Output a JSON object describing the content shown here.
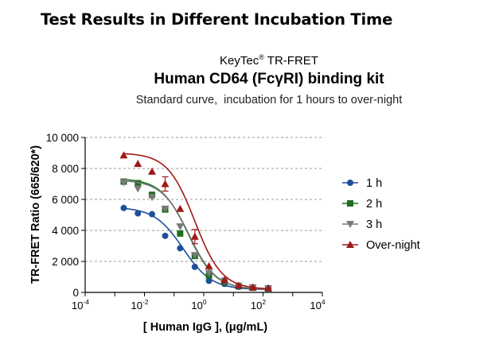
{
  "heading": "Test Results in Different Incubation Time",
  "brand": {
    "name": "KeyTec",
    "mark": "®",
    "product": "TR-FRET"
  },
  "chart_data": {
    "type": "line",
    "title": "Human CD64 (FcγRI) binding kit",
    "subtitle": "Standard curve,  incubation for 1 hours to over-night",
    "xlabel": "[ Human IgG ],  (μg/mL)",
    "ylabel": "TR-FRET Ratio (665/620*)",
    "xscale": "log10",
    "xlim": [
      0.0001,
      10000
    ],
    "ylim": [
      0,
      10000
    ],
    "x_tick_base": "10",
    "x_tick_exponents": [
      "-4",
      "-2",
      "0",
      "2",
      "4"
    ],
    "y_ticks": [
      0,
      2000,
      4000,
      6000,
      8000,
      10000
    ],
    "y_tick_labels": [
      "0",
      "2 000",
      "4 000",
      "6 000",
      "8 000",
      "10 000"
    ],
    "gridlines": "horizontal dashed",
    "legend_position": "right",
    "x": [
      0.002,
      0.006,
      0.018,
      0.05,
      0.16,
      0.5,
      1.5,
      5,
      15,
      45,
      150
    ],
    "series": [
      {
        "name": "1 h",
        "color": "#1f4e9a",
        "marker": "circle",
        "values": [
          5450,
          5100,
          5050,
          3650,
          2850,
          1650,
          750,
          550,
          350,
          300,
          250
        ],
        "fit": {
          "bottom": 180,
          "top": 5500,
          "ec50": 0.2,
          "hill": 0.9
        }
      },
      {
        "name": "2 h",
        "color": "#1f6e1f",
        "marker": "square",
        "values": [
          7150,
          7050,
          6300,
          5350,
          3800,
          2350,
          1100,
          700,
          400,
          300,
          250
        ],
        "fit": {
          "bottom": 200,
          "top": 7350,
          "ec50": 0.3,
          "hill": 0.95
        }
      },
      {
        "name": "3 h",
        "color": "#7a7a7a",
        "marker": "triangle-down",
        "values": [
          7100,
          6700,
          6150,
          5400,
          4250,
          2400,
          1250,
          750,
          420,
          320,
          260
        ],
        "fit": {
          "bottom": 200,
          "top": 7250,
          "ec50": 0.32,
          "hill": 0.95
        }
      },
      {
        "name": "Over-night",
        "color": "#a01818",
        "marker": "triangle-up",
        "values": [
          8850,
          8300,
          7800,
          7000,
          5400,
          3600,
          1700,
          800,
          450,
          330,
          280
        ],
        "fit": {
          "bottom": 200,
          "top": 9000,
          "ec50": 0.5,
          "hill": 0.95
        }
      }
    ]
  }
}
